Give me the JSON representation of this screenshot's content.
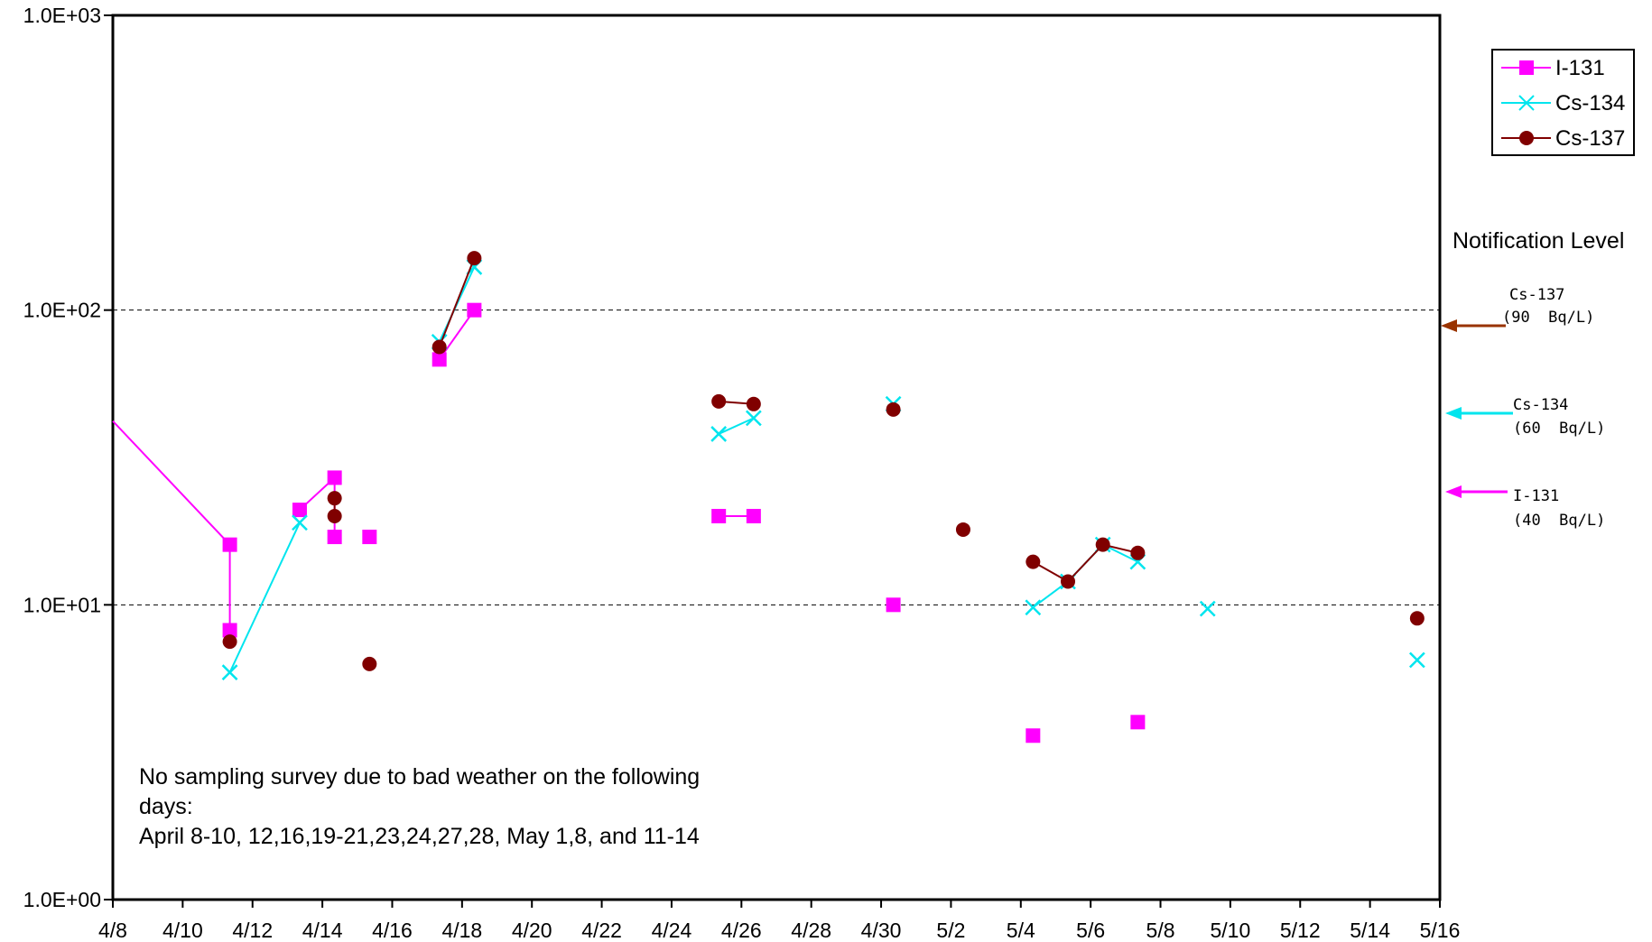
{
  "chart_data": {
    "type": "line",
    "y_scale": "log",
    "ylim": [
      1,
      1000
    ],
    "y_ticks": [
      {
        "value": 1,
        "label": "1.0E+00"
      },
      {
        "value": 10,
        "label": "1.0E+01"
      },
      {
        "value": 100,
        "label": "1.0E+02"
      },
      {
        "value": 1000,
        "label": "1.0E+03"
      }
    ],
    "xlim": [
      "2011-04-08",
      "2011-05-16"
    ],
    "x_ticks": [
      {
        "date": "2011-04-08",
        "label": "4/8"
      },
      {
        "date": "2011-04-10",
        "label": "4/10"
      },
      {
        "date": "2011-04-12",
        "label": "4/12"
      },
      {
        "date": "2011-04-14",
        "label": "4/14"
      },
      {
        "date": "2011-04-16",
        "label": "4/16"
      },
      {
        "date": "2011-04-18",
        "label": "4/18"
      },
      {
        "date": "2011-04-20",
        "label": "4/20"
      },
      {
        "date": "2011-04-22",
        "label": "4/22"
      },
      {
        "date": "2011-04-24",
        "label": "4/24"
      },
      {
        "date": "2011-04-26",
        "label": "4/26"
      },
      {
        "date": "2011-04-28",
        "label": "4/28"
      },
      {
        "date": "2011-04-30",
        "label": "4/30"
      },
      {
        "date": "2011-05-02",
        "label": "5/2"
      },
      {
        "date": "2011-05-04",
        "label": "5/4"
      },
      {
        "date": "2011-05-06",
        "label": "5/6"
      },
      {
        "date": "2011-05-08",
        "label": "5/8"
      },
      {
        "date": "2011-05-10",
        "label": "5/10"
      },
      {
        "date": "2011-05-12",
        "label": "5/12"
      },
      {
        "date": "2011-05-14",
        "label": "5/14"
      },
      {
        "date": "2011-05-16",
        "label": "5/16"
      }
    ],
    "gridlines": {
      "horizontal_dashed_at": [
        10,
        100
      ]
    },
    "legend_position": "top-right",
    "series": [
      {
        "name": "I-131",
        "color": "#ff00ff",
        "marker": "square",
        "points": [
          {
            "date": "2011-04-08",
            "y": 42,
            "marker": false
          },
          {
            "date": "2011-04-11",
            "y": 16
          },
          {
            "date": "2011-04-11",
            "y": 8.2
          },
          {
            "date": "2011-04-13",
            "y": 21
          },
          {
            "date": "2011-04-14",
            "y": 27
          },
          {
            "date": "2011-04-14",
            "y": 17
          },
          {
            "date": "2011-04-15",
            "y": 17
          },
          {
            "date": "2011-04-17",
            "y": 68
          },
          {
            "date": "2011-04-18",
            "y": 100
          },
          {
            "date": "2011-04-25",
            "y": 20
          },
          {
            "date": "2011-04-26",
            "y": 20
          },
          {
            "date": "2011-04-30",
            "y": 10
          },
          {
            "date": "2011-05-04",
            "y": 3.6
          },
          {
            "date": "2011-05-07",
            "y": 4
          }
        ],
        "segments": [
          [
            0,
            1
          ],
          [
            1,
            2
          ],
          [
            3,
            4
          ],
          [
            4,
            5
          ],
          [
            7,
            8
          ],
          [
            9,
            10
          ]
        ]
      },
      {
        "name": "Cs-134",
        "color": "#00e5ee",
        "marker": "x",
        "points": [
          {
            "date": "2011-04-11",
            "y": 5.9
          },
          {
            "date": "2011-04-13",
            "y": 19
          },
          {
            "date": "2011-04-17",
            "y": 78
          },
          {
            "date": "2011-04-18",
            "y": 140
          },
          {
            "date": "2011-04-25",
            "y": 38
          },
          {
            "date": "2011-04-26",
            "y": 43
          },
          {
            "date": "2011-04-30",
            "y": 48
          },
          {
            "date": "2011-05-04",
            "y": 9.8
          },
          {
            "date": "2011-05-05",
            "y": 12
          },
          {
            "date": "2011-05-06",
            "y": 16
          },
          {
            "date": "2011-05-07",
            "y": 14
          },
          {
            "date": "2011-05-09",
            "y": 9.7
          },
          {
            "date": "2011-05-15",
            "y": 6.5
          }
        ],
        "segments": [
          [
            0,
            1
          ],
          [
            2,
            3
          ],
          [
            4,
            5
          ],
          [
            7,
            8
          ],
          [
            8,
            9
          ],
          [
            9,
            10
          ]
        ]
      },
      {
        "name": "Cs-137",
        "color": "#800000",
        "marker": "circle",
        "points": [
          {
            "date": "2011-04-11",
            "y": 7.5
          },
          {
            "date": "2011-04-14",
            "y": 23
          },
          {
            "date": "2011-04-14",
            "y": 20
          },
          {
            "date": "2011-04-15",
            "y": 6.3
          },
          {
            "date": "2011-04-17",
            "y": 75
          },
          {
            "date": "2011-04-18",
            "y": 150
          },
          {
            "date": "2011-04-25",
            "y": 49
          },
          {
            "date": "2011-04-26",
            "y": 48
          },
          {
            "date": "2011-04-30",
            "y": 46
          },
          {
            "date": "2011-05-02",
            "y": 18
          },
          {
            "date": "2011-05-04",
            "y": 14
          },
          {
            "date": "2011-05-05",
            "y": 12
          },
          {
            "date": "2011-05-06",
            "y": 16
          },
          {
            "date": "2011-05-07",
            "y": 15
          },
          {
            "date": "2011-05-15",
            "y": 9
          }
        ],
        "segments": [
          [
            1,
            2
          ],
          [
            4,
            5
          ],
          [
            6,
            7
          ],
          [
            10,
            11
          ],
          [
            11,
            12
          ],
          [
            12,
            13
          ]
        ]
      }
    ],
    "notification_level": {
      "title": "Notification Level",
      "items": [
        {
          "nuclide": "Cs-137",
          "value_label": "(90  Bq/L)",
          "color": "#993300"
        },
        {
          "nuclide": "Cs-134",
          "value_label": "(60  Bq/L)",
          "color": "#00e5ee"
        },
        {
          "nuclide": "I-131",
          "value_label": "(40  Bq/L)",
          "color": "#ff00ff"
        }
      ]
    },
    "annotation": [
      "No sampling survey due to bad weather on the following",
      "days:",
      "April 8-10, 12,16,19-21,23,24,27,28, May 1,8, and 11-14"
    ]
  }
}
